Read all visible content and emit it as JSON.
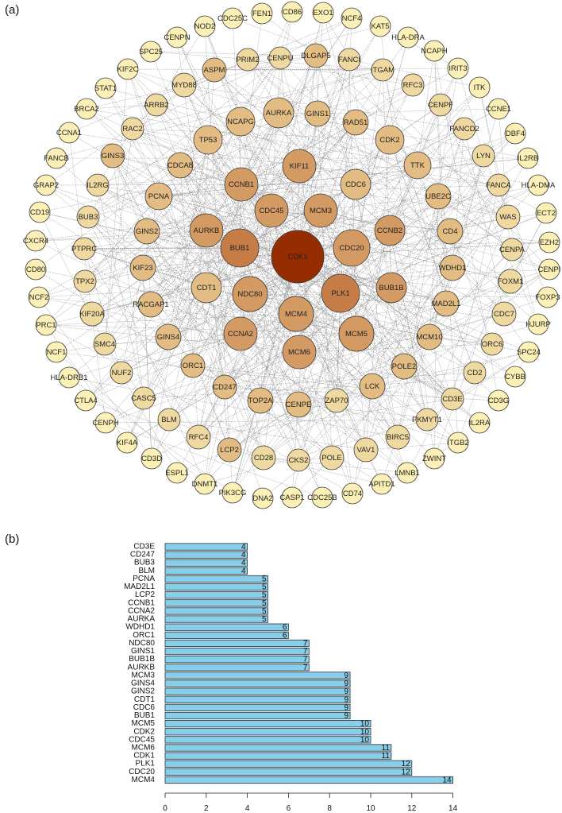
{
  "panel_a_label": "(a)",
  "panel_b_label": "(b)",
  "network": {
    "tier_colors": [
      "#fcf0b6",
      "#f0d9a0",
      "#e3bc84",
      "#d49a63",
      "#c67c47",
      "#962d00"
    ],
    "edge_color": "#8c8c8c",
    "node_border": "#3a3a3a",
    "nodes": [
      {
        "id": "CDK1",
        "tier": 5
      },
      {
        "id": "BUB1",
        "tier": 4
      },
      {
        "id": "PLK1",
        "tier": 4
      },
      {
        "id": "CDC20",
        "tier": 3
      },
      {
        "id": "MCM4",
        "tier": 3
      },
      {
        "id": "MCM5",
        "tier": 3
      },
      {
        "id": "MCM6",
        "tier": 3
      },
      {
        "id": "AURKB",
        "tier": 3
      },
      {
        "id": "NDC80",
        "tier": 3
      },
      {
        "id": "CCNA2",
        "tier": 3
      },
      {
        "id": "CCNB1",
        "tier": 3
      },
      {
        "id": "CDC45",
        "tier": 3
      },
      {
        "id": "MCM3",
        "tier": 3
      },
      {
        "id": "KIF11",
        "tier": 3
      },
      {
        "id": "CCNB2",
        "tier": 3
      },
      {
        "id": "BUB1B",
        "tier": 3
      },
      {
        "id": "CDT1",
        "tier": 2
      },
      {
        "id": "CDC6",
        "tier": 2
      },
      {
        "id": "CDK2",
        "tier": 2
      },
      {
        "id": "AURKA",
        "tier": 2
      },
      {
        "id": "NCAPG",
        "tier": 2
      },
      {
        "id": "TP53",
        "tier": 2
      },
      {
        "id": "GINS2",
        "tier": 2
      },
      {
        "id": "PCNA",
        "tier": 2
      },
      {
        "id": "KIF23",
        "tier": 2
      },
      {
        "id": "LCK",
        "tier": 2
      },
      {
        "id": "MAD2L1",
        "tier": 2
      },
      {
        "id": "WDHD1",
        "tier": 2
      },
      {
        "id": "TTK",
        "tier": 2
      },
      {
        "id": "CENPE",
        "tier": 2
      },
      {
        "id": "TOP2A",
        "tier": 2
      },
      {
        "id": "GINS4",
        "tier": 2
      },
      {
        "id": "ORC1",
        "tier": 2
      },
      {
        "id": "CD247",
        "tier": 2
      },
      {
        "id": "RACGAP1",
        "tier": 2
      },
      {
        "id": "CDCA8",
        "tier": 2
      },
      {
        "id": "GINS3",
        "tier": 2
      },
      {
        "id": "GINS1",
        "tier": 2
      },
      {
        "id": "RAD51",
        "tier": 2
      },
      {
        "id": "MCM10",
        "tier": 2
      },
      {
        "id": "POLE2",
        "tier": 2
      },
      {
        "id": "CD4",
        "tier": 2
      },
      {
        "id": "UBE2C",
        "tier": 2
      },
      {
        "id": "ASPM",
        "tier": 2
      },
      {
        "id": "DLGAP5",
        "tier": 2
      },
      {
        "id": "LCP2",
        "tier": 2
      },
      {
        "id": "MYD88",
        "tier": 1
      },
      {
        "id": "ARRB2",
        "tier": 1
      },
      {
        "id": "RAC2",
        "tier": 1
      },
      {
        "id": "IL2RG",
        "tier": 1
      },
      {
        "id": "BUB3",
        "tier": 1
      },
      {
        "id": "PTPRC",
        "tier": 1
      },
      {
        "id": "TPX2",
        "tier": 1
      },
      {
        "id": "KIF20A",
        "tier": 1
      },
      {
        "id": "SMC4",
        "tier": 1
      },
      {
        "id": "NUF2",
        "tier": 1
      },
      {
        "id": "CASC5",
        "tier": 1
      },
      {
        "id": "BLM",
        "tier": 1
      },
      {
        "id": "RFC4",
        "tier": 1
      },
      {
        "id": "CD28",
        "tier": 1
      },
      {
        "id": "ZAP70",
        "tier": 1
      },
      {
        "id": "POLE",
        "tier": 1
      },
      {
        "id": "VAV1",
        "tier": 1
      },
      {
        "id": "BIRC5",
        "tier": 1
      },
      {
        "id": "CKS2",
        "tier": 1
      },
      {
        "id": "CD3E",
        "tier": 1
      },
      {
        "id": "CD2",
        "tier": 1
      },
      {
        "id": "ORC6",
        "tier": 1
      },
      {
        "id": "CDC7",
        "tier": 1
      },
      {
        "id": "FOXM1",
        "tier": 1
      },
      {
        "id": "CENPA",
        "tier": 1
      },
      {
        "id": "WAS",
        "tier": 1
      },
      {
        "id": "FANCA",
        "tier": 1
      },
      {
        "id": "LYN",
        "tier": 1
      },
      {
        "id": "FANCD2",
        "tier": 1
      },
      {
        "id": "CENPF",
        "tier": 1
      },
      {
        "id": "RFC3",
        "tier": 1
      },
      {
        "id": "ITGAM",
        "tier": 1
      },
      {
        "id": "FANCI",
        "tier": 1
      },
      {
        "id": "PRIM2",
        "tier": 1
      },
      {
        "id": "CENPU",
        "tier": 1
      },
      {
        "id": "PKMYT1",
        "tier": 1
      },
      {
        "id": "CD86",
        "tier": 0
      },
      {
        "id": "EXO1",
        "tier": 0
      },
      {
        "id": "NCF4",
        "tier": 0
      },
      {
        "id": "KAT5",
        "tier": 0
      },
      {
        "id": "HLA-DRA",
        "tier": 0
      },
      {
        "id": "NCAPH",
        "tier": 0
      },
      {
        "id": "IRIT3",
        "tier": 0
      },
      {
        "id": "ITK",
        "tier": 0
      },
      {
        "id": "CCNE1",
        "tier": 0
      },
      {
        "id": "DBF4",
        "tier": 0
      },
      {
        "id": "IL2RB",
        "tier": 0
      },
      {
        "id": "HLA-DMA",
        "tier": 0
      },
      {
        "id": "ECT2",
        "tier": 0
      },
      {
        "id": "EZH2",
        "tier": 0
      },
      {
        "id": "CENPI",
        "tier": 0
      },
      {
        "id": "FOXP3",
        "tier": 0
      },
      {
        "id": "HJURP",
        "tier": 0
      },
      {
        "id": "SPC24",
        "tier": 0
      },
      {
        "id": "CYBB",
        "tier": 0
      },
      {
        "id": "CD3G",
        "tier": 0
      },
      {
        "id": "IL2RA",
        "tier": 0
      },
      {
        "id": "ITGB2",
        "tier": 0
      },
      {
        "id": "ZWINT",
        "tier": 0
      },
      {
        "id": "LMNB1",
        "tier": 0
      },
      {
        "id": "APITD1",
        "tier": 0
      },
      {
        "id": "CD74",
        "tier": 0
      },
      {
        "id": "CDC25B",
        "tier": 0
      },
      {
        "id": "CASP1",
        "tier": 0
      },
      {
        "id": "DNA2",
        "tier": 0
      },
      {
        "id": "PIK3CG",
        "tier": 0
      },
      {
        "id": "DNMT1",
        "tier": 0
      },
      {
        "id": "ESPL1",
        "tier": 0
      },
      {
        "id": "CD3D",
        "tier": 0
      },
      {
        "id": "KIF4A",
        "tier": 0
      },
      {
        "id": "CENPH",
        "tier": 0
      },
      {
        "id": "CTLA4",
        "tier": 0
      },
      {
        "id": "HLA-DRB1",
        "tier": 0
      },
      {
        "id": "NCF1",
        "tier": 0
      },
      {
        "id": "PRC1",
        "tier": 0
      },
      {
        "id": "NCF2",
        "tier": 0
      },
      {
        "id": "CD80",
        "tier": 0
      },
      {
        "id": "CXCR4",
        "tier": 0
      },
      {
        "id": "CD19",
        "tier": 0
      },
      {
        "id": "GRAP2",
        "tier": 0
      },
      {
        "id": "FANCB",
        "tier": 0
      },
      {
        "id": "CCNA1",
        "tier": 0
      },
      {
        "id": "BRCA2",
        "tier": 0
      },
      {
        "id": "STAT1",
        "tier": 0
      },
      {
        "id": "KIF2C",
        "tier": 0
      },
      {
        "id": "SPC25",
        "tier": 0
      },
      {
        "id": "CENPN",
        "tier": 0
      },
      {
        "id": "NOD2",
        "tier": 0
      },
      {
        "id": "CDC25C",
        "tier": 0
      },
      {
        "id": "FEN1",
        "tier": 0
      }
    ]
  },
  "chart_data": {
    "type": "bar",
    "orientation": "horizontal",
    "categories": [
      "CD3E",
      "CD247",
      "BUB3",
      "BLM",
      "PCNA",
      "MAD2L1",
      "LCP2",
      "CCNB1",
      "CCNA2",
      "AURKA",
      "WDHD1",
      "ORC1",
      "NDC80",
      "GINS1",
      "BUB1B",
      "AURKB",
      "MCM3",
      "GINS4",
      "GINS2",
      "CDT1",
      "CDC6",
      "BUB1",
      "MCM5",
      "CDK2",
      "CDC45",
      "MCM6",
      "CDK1",
      "PLK1",
      "CDC20",
      "MCM4"
    ],
    "values": [
      4,
      4,
      4,
      4,
      5,
      5,
      5,
      5,
      5,
      5,
      6,
      6,
      7,
      7,
      7,
      7,
      9,
      9,
      9,
      9,
      9,
      9,
      10,
      10,
      10,
      11,
      11,
      12,
      12,
      14
    ],
    "xlim": [
      0,
      14
    ],
    "xticks": [
      "0",
      "2",
      "4",
      "6",
      "8",
      "10",
      "12",
      "14"
    ],
    "bar_color": "#87ceeb",
    "title": "",
    "xlabel": "",
    "ylabel": "",
    "grid": false
  }
}
